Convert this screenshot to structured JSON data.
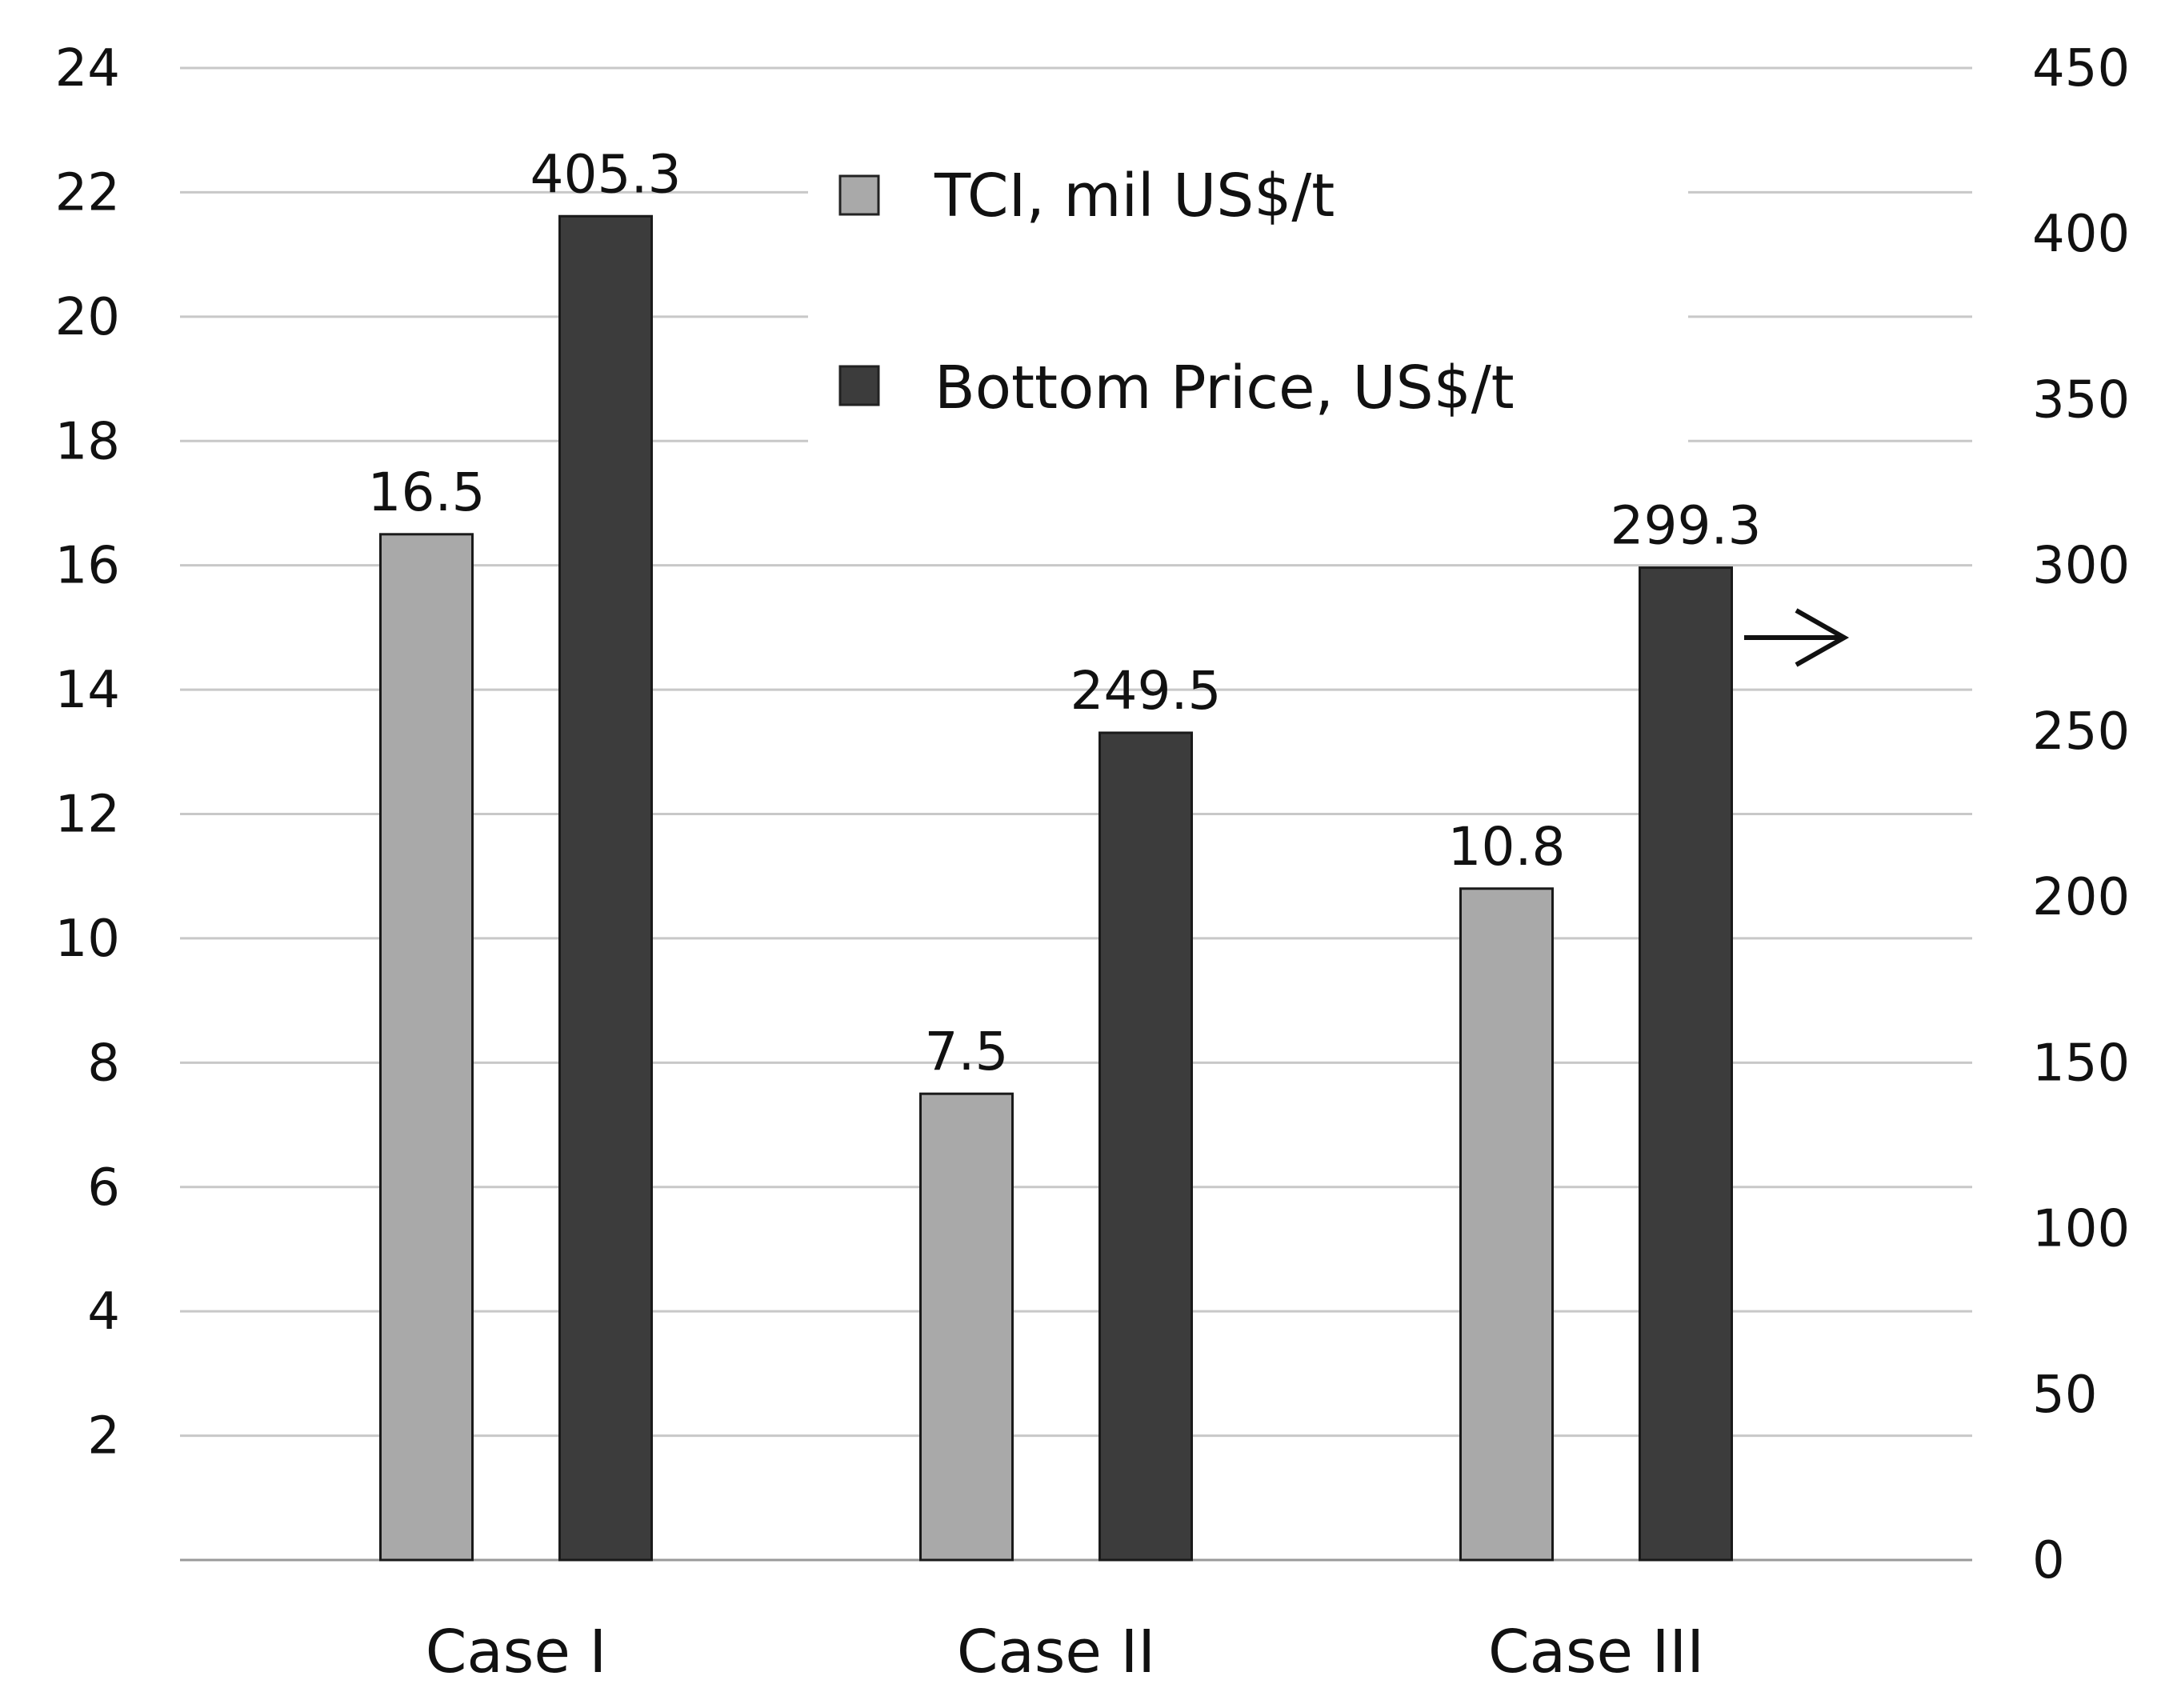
{
  "chart_data": {
    "type": "bar",
    "title": "",
    "categories": [
      "Case I",
      "Case II",
      "Case III"
    ],
    "series": [
      {
        "name": "TCI, mil US$/t",
        "axis": "left",
        "color": "#a9a9a9",
        "values": [
          16.5,
          7.5,
          10.8
        ],
        "labels": [
          "16.5",
          "7.5",
          "10.8"
        ]
      },
      {
        "name": "Bottom Price, US$/t",
        "axis": "right",
        "color": "#3c3c3c",
        "values": [
          405.3,
          249.5,
          299.3
        ],
        "labels": [
          "405.3",
          "249.5",
          "299.3"
        ]
      }
    ],
    "y_left": {
      "min": 0,
      "max": 24,
      "ticks": [
        2,
        4,
        6,
        8,
        10,
        12,
        14,
        16,
        18,
        20,
        22,
        24
      ],
      "tick_labels": [
        "2",
        "4",
        "6",
        "8",
        "10",
        "12",
        "14",
        "16",
        "18",
        "20",
        "22",
        "24"
      ]
    },
    "y_right": {
      "min": 0,
      "max": 450,
      "ticks": [
        0,
        50,
        100,
        150,
        200,
        250,
        300,
        350,
        400,
        450
      ],
      "tick_labels": [
        "0",
        "50",
        "100",
        "150",
        "200",
        "250",
        "300",
        "350",
        "400",
        "450"
      ]
    },
    "grid": true,
    "legend": "top-center",
    "annotation": "arrow pointing right toward the right axis"
  }
}
